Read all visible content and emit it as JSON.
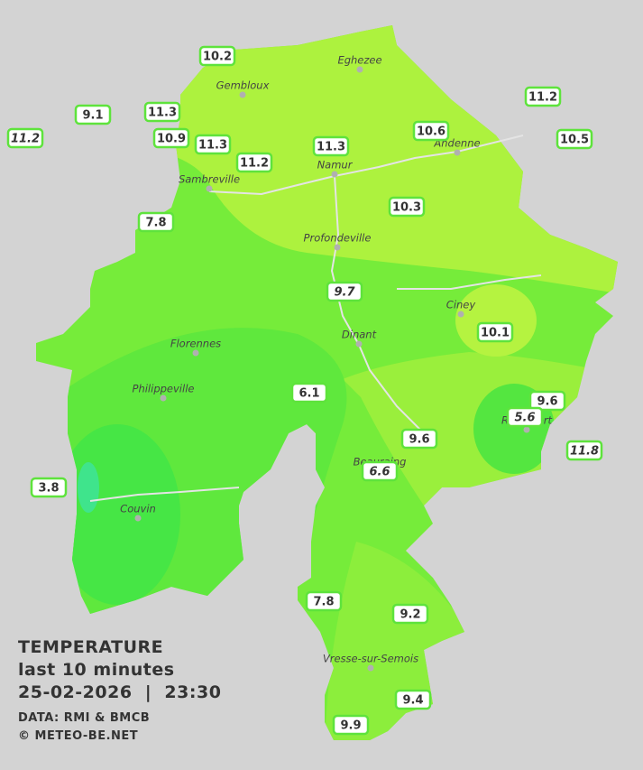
{
  "stations": [
    {
      "label": "10.2",
      "italic": false
    },
    {
      "label": "9.1",
      "italic": false
    },
    {
      "label": "11.2",
      "italic": true
    },
    {
      "label": "11.3",
      "italic": false
    },
    {
      "label": "10.9",
      "italic": false
    },
    {
      "label": "11.3",
      "italic": false
    },
    {
      "label": "11.2",
      "italic": false
    },
    {
      "label": "11.3",
      "italic": false
    },
    {
      "label": "10.6",
      "italic": false
    },
    {
      "label": "11.2",
      "italic": false
    },
    {
      "label": "10.5",
      "italic": false
    },
    {
      "label": "7.8",
      "italic": false
    },
    {
      "label": "10.3",
      "italic": false
    },
    {
      "label": "9.7",
      "italic": true
    },
    {
      "label": "10.1",
      "italic": false
    },
    {
      "label": "6.1",
      "italic": false
    },
    {
      "label": "9.6",
      "italic": false
    },
    {
      "label": "5.6",
      "italic": true
    },
    {
      "label": "9.6",
      "italic": false
    },
    {
      "label": "11.8",
      "italic": true
    },
    {
      "label": "6.6",
      "italic": true
    },
    {
      "label": "3.8",
      "italic": false
    },
    {
      "label": "7.8",
      "italic": false
    },
    {
      "label": "9.2",
      "italic": false
    },
    {
      "label": "9.4",
      "italic": false
    },
    {
      "label": "9.9",
      "italic": false
    }
  ],
  "cities": [
    "Eghezee",
    "Gembloux",
    "Andenne",
    "Namur",
    "Sambreville",
    "Profondeville",
    "Ciney",
    "Dinant",
    "Florennes",
    "Philippeville",
    "Rochefort",
    "Beauraing",
    "Couvin",
    "Vresse-sur-Semois"
  ],
  "legend": {
    "title": "TEMPERATURE",
    "period": "last 10 minutes",
    "datetime": "25-02-2026  |  23:30",
    "source": "DATA: RMI & BMCB",
    "credit": "© METEO-BE.NET"
  }
}
